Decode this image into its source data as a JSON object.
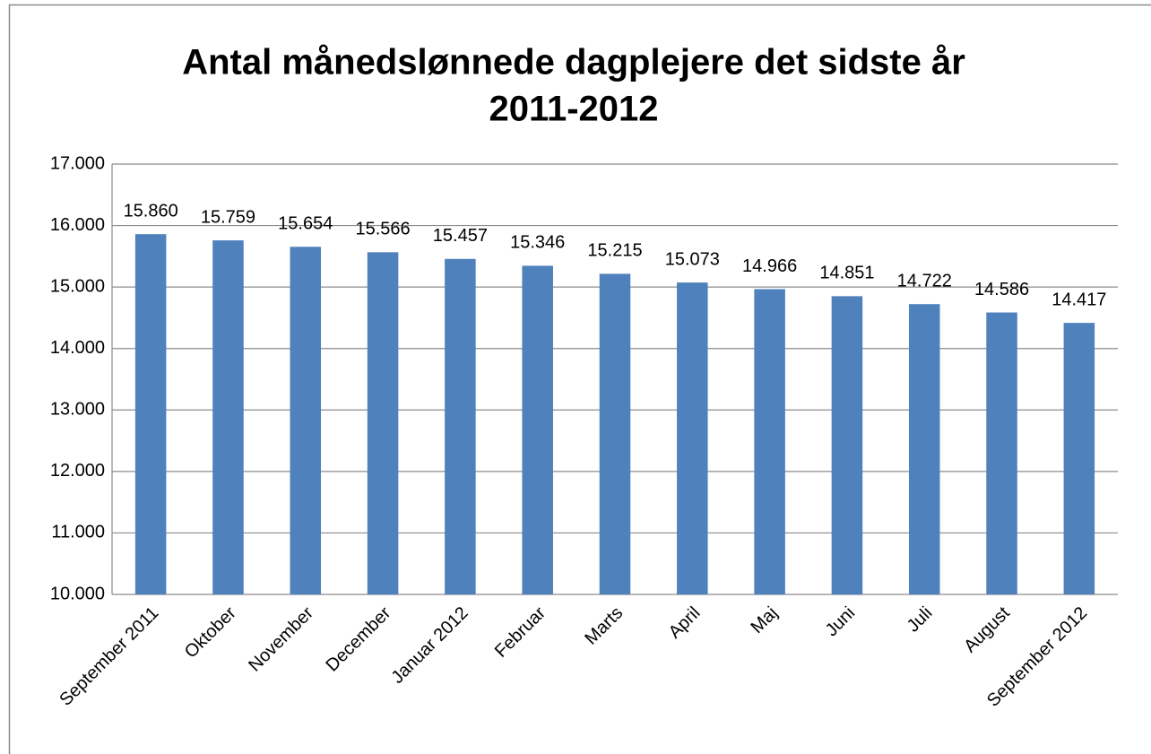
{
  "chart_data": {
    "type": "bar",
    "title": [
      "Antal månedslønnede dagplejere det sidste år",
      "2011-2012"
    ],
    "categories": [
      "September 2011",
      "Oktober",
      "November",
      "December",
      "Januar 2012",
      "Februar",
      "Marts",
      "April",
      "Maj",
      "Juni",
      "Juli",
      "August",
      "September 2012"
    ],
    "values": [
      15860,
      15759,
      15654,
      15566,
      15457,
      15346,
      15215,
      15073,
      14966,
      14851,
      14722,
      14586,
      14417
    ],
    "value_labels": [
      "15.860",
      "15.759",
      "15.654",
      "15.566",
      "15.457",
      "15.346",
      "15.215",
      "15.073",
      "14.966",
      "14.851",
      "14.722",
      "14.586",
      "14.417"
    ],
    "color": "#4f81bd",
    "ylim": [
      10000,
      17000
    ],
    "yticks": [
      {
        "value": 10000,
        "label": "10.000"
      },
      {
        "value": 11000,
        "label": "11.000"
      },
      {
        "value": 12000,
        "label": "12.000"
      },
      {
        "value": 13000,
        "label": "13.000"
      },
      {
        "value": 14000,
        "label": "14.000"
      },
      {
        "value": 15000,
        "label": "15.000"
      },
      {
        "value": 16000,
        "label": "16.000"
      },
      {
        "value": 17000,
        "label": "17.000"
      }
    ],
    "grid": true
  }
}
